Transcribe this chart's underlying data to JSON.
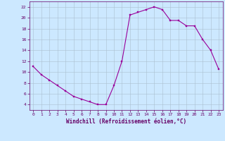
{
  "hours": [
    0,
    1,
    2,
    3,
    4,
    5,
    6,
    7,
    8,
    9,
    10,
    11,
    12,
    13,
    14,
    15,
    16,
    17,
    18,
    19,
    20,
    21,
    22,
    23
  ],
  "values": [
    11.0,
    9.5,
    8.5,
    7.5,
    6.5,
    5.5,
    5.0,
    4.5,
    4.0,
    4.0,
    7.5,
    12.0,
    20.5,
    21.0,
    21.5,
    22.0,
    21.5,
    19.5,
    19.5,
    18.5,
    18.5,
    16.0,
    14.0,
    10.5
  ],
  "title": "",
  "xlabel": "Windchill (Refroidissement éolien,°C)",
  "ylabel": "",
  "ylim": [
    3,
    23
  ],
  "xlim": [
    -0.5,
    23.5
  ],
  "yticks": [
    4,
    6,
    8,
    10,
    12,
    14,
    16,
    18,
    20,
    22
  ],
  "xticks": [
    0,
    1,
    2,
    3,
    4,
    5,
    6,
    7,
    8,
    9,
    10,
    11,
    12,
    13,
    14,
    15,
    16,
    17,
    18,
    19,
    20,
    21,
    22,
    23
  ],
  "line_color": "#990099",
  "marker_color": "#990099",
  "bg_color": "#cce8ff",
  "grid_color": "#aac0d0",
  "axis_color": "#660066",
  "tick_color": "#660066",
  "label_color": "#660066"
}
